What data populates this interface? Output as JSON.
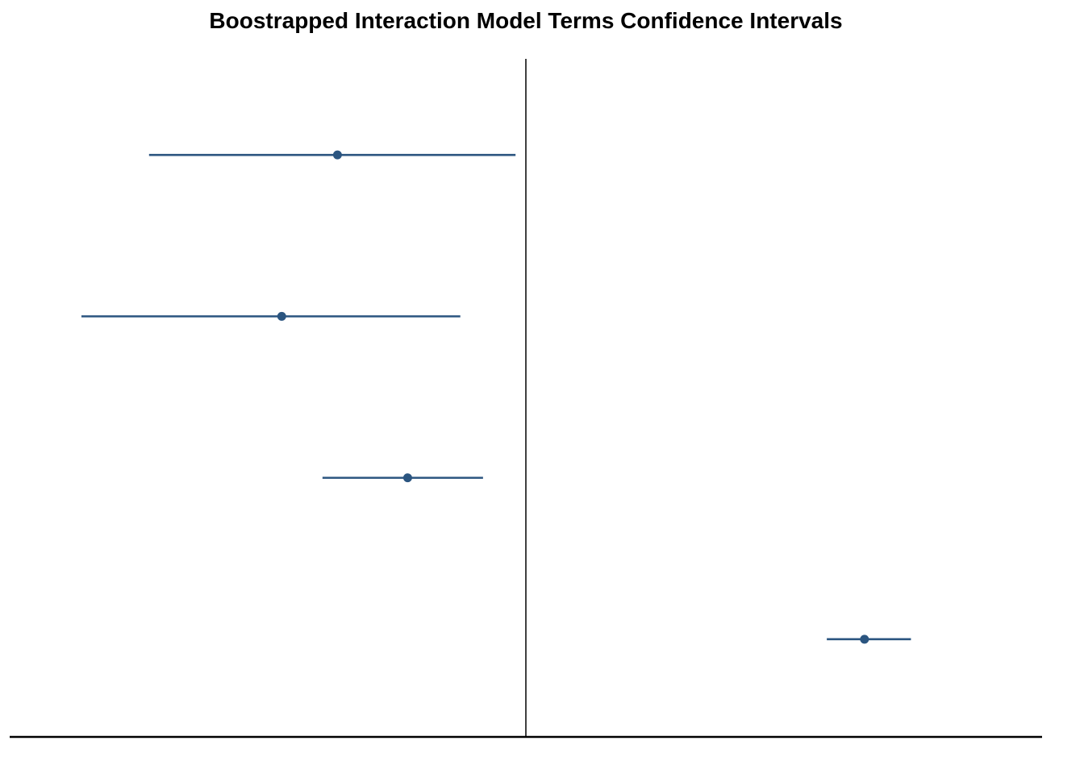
{
  "chart_data": {
    "type": "forest",
    "title": "Boostrapped Interaction Model Terms Confidence Intervals",
    "xlabel": "",
    "ylabel": "",
    "grid": false,
    "legend": "none",
    "reference_line_x": 0,
    "xlim": [
      -1,
      1
    ],
    "series": [
      {
        "points": [
          {
            "estimate": -0.365,
            "lower": -0.73,
            "upper": -0.02
          },
          {
            "estimate": -0.473,
            "lower": -0.861,
            "upper": -0.127
          },
          {
            "estimate": -0.229,
            "lower": -0.394,
            "upper": -0.083
          },
          {
            "estimate": 0.656,
            "lower": 0.583,
            "upper": 0.746
          }
        ]
      }
    ],
    "colors": {
      "marker": "#2b5580",
      "reference_line": "#000000",
      "axis": "#000000"
    }
  }
}
